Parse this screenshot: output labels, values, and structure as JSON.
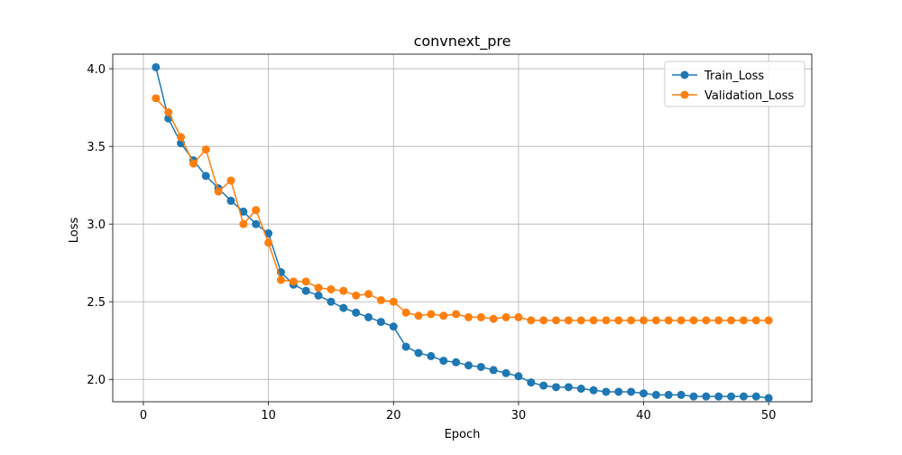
{
  "chart_data": {
    "type": "line",
    "title": "convnext_pre",
    "xlabel": "Epoch",
    "ylabel": "Loss",
    "xlim": [
      -2.45,
      53.45
    ],
    "ylim": [
      1.856,
      4.094
    ],
    "xticks": [
      0,
      10,
      20,
      30,
      40,
      50
    ],
    "xtick_labels": [
      "0",
      "10",
      "20",
      "30",
      "40",
      "50"
    ],
    "yticks": [
      2.0,
      2.5,
      3.0,
      3.5,
      4.0
    ],
    "ytick_labels": [
      "2.0",
      "2.5",
      "3.0",
      "3.5",
      "4.0"
    ],
    "grid": true,
    "legend_position": "top-right",
    "x": [
      1,
      2,
      3,
      4,
      5,
      6,
      7,
      8,
      9,
      10,
      11,
      12,
      13,
      14,
      15,
      16,
      17,
      18,
      19,
      20,
      21,
      22,
      23,
      24,
      25,
      26,
      27,
      28,
      29,
      30,
      31,
      32,
      33,
      34,
      35,
      36,
      37,
      38,
      39,
      40,
      41,
      42,
      43,
      44,
      45,
      46,
      47,
      48,
      49,
      50
    ],
    "series": [
      {
        "name": "Train_Loss",
        "color": "#1f77b4",
        "marker": "circle",
        "values": [
          4.01,
          3.68,
          3.52,
          3.41,
          3.31,
          3.23,
          3.15,
          3.08,
          3.0,
          2.94,
          2.69,
          2.61,
          2.57,
          2.54,
          2.5,
          2.46,
          2.43,
          2.4,
          2.37,
          2.34,
          2.21,
          2.17,
          2.15,
          2.12,
          2.11,
          2.09,
          2.08,
          2.06,
          2.04,
          2.02,
          1.98,
          1.96,
          1.95,
          1.95,
          1.94,
          1.93,
          1.92,
          1.92,
          1.92,
          1.91,
          1.9,
          1.9,
          1.9,
          1.89,
          1.89,
          1.89,
          1.89,
          1.89,
          1.89,
          1.88
        ]
      },
      {
        "name": "Validation_Loss",
        "color": "#ff7f0e",
        "marker": "circle",
        "values": [
          3.81,
          3.72,
          3.56,
          3.39,
          3.48,
          3.21,
          3.28,
          3.0,
          3.09,
          2.88,
          2.64,
          2.63,
          2.63,
          2.59,
          2.58,
          2.57,
          2.54,
          2.55,
          2.51,
          2.5,
          2.43,
          2.41,
          2.42,
          2.41,
          2.42,
          2.4,
          2.4,
          2.39,
          2.4,
          2.4,
          2.38,
          2.38,
          2.38,
          2.38,
          2.38,
          2.38,
          2.38,
          2.38,
          2.38,
          2.38,
          2.38,
          2.38,
          2.38,
          2.38,
          2.38,
          2.38,
          2.38,
          2.38,
          2.38,
          2.38
        ]
      }
    ]
  }
}
